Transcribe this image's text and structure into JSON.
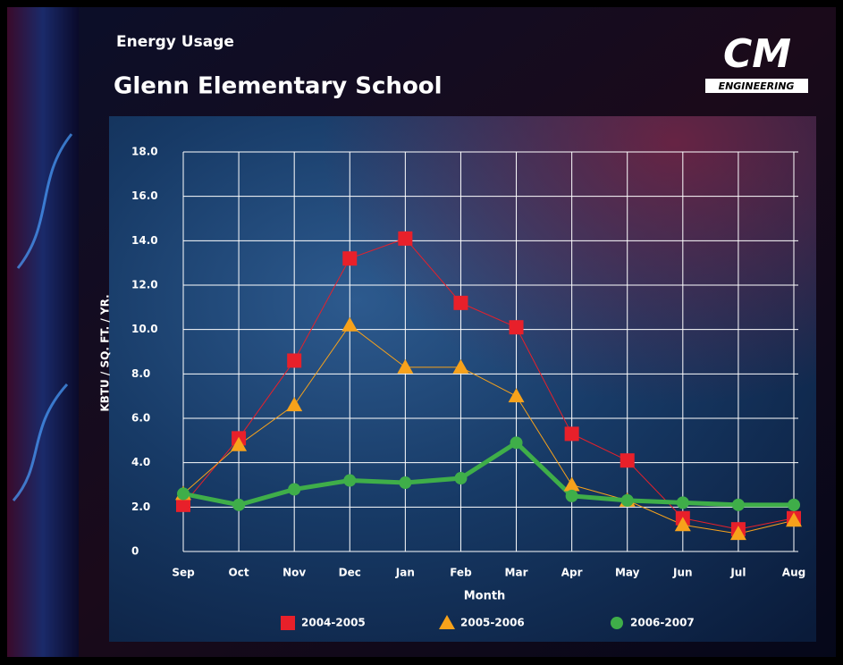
{
  "chart_data": {
    "type": "line",
    "header": "Energy Usage",
    "title": "Glenn Elementary School",
    "logo": {
      "mark": "CM",
      "text": "ENGINEERING"
    },
    "x_label": "Month",
    "y_label": "KBTU / SQ. FT. / YR.",
    "categories": [
      "Sep",
      "Oct",
      "Nov",
      "Dec",
      "Jan",
      "Feb",
      "Mar",
      "Apr",
      "May",
      "Jun",
      "Jul",
      "Aug"
    ],
    "series": [
      {
        "name": "2004-2005",
        "color": "#e8202a",
        "marker": "square",
        "line_width": 1,
        "values": [
          2.1,
          5.1,
          8.6,
          13.2,
          14.1,
          11.2,
          10.1,
          5.3,
          4.1,
          1.5,
          1.0,
          1.5
        ]
      },
      {
        "name": "2005-2006",
        "color": "#f7a21b",
        "marker": "triangle",
        "line_width": 1,
        "values": [
          2.6,
          4.8,
          6.6,
          10.2,
          8.3,
          8.3,
          7.0,
          3.0,
          2.3,
          1.2,
          0.8,
          1.4
        ]
      },
      {
        "name": "2006-2007",
        "color": "#3fae49",
        "marker": "circle",
        "line_width": 5,
        "values": [
          2.6,
          2.1,
          2.8,
          3.2,
          3.1,
          3.3,
          4.9,
          2.5,
          2.3,
          2.2,
          2.1,
          2.1
        ]
      }
    ],
    "ylim": [
      0,
      18
    ],
    "yticks": [
      0,
      {
        "value": 2,
        "label": "2.0"
      },
      {
        "value": 4,
        "label": "4.0"
      },
      {
        "value": 6,
        "label": "6.0"
      },
      {
        "value": 8,
        "label": "8.0"
      },
      {
        "value": 10,
        "label": "10.0"
      },
      {
        "value": 12,
        "label": "12.0"
      },
      {
        "value": 14,
        "label": "14.0"
      },
      {
        "value": 16,
        "label": "16.0"
      },
      {
        "value": 18,
        "label": "18.0"
      }
    ],
    "grid": true,
    "legend": "bottom"
  }
}
